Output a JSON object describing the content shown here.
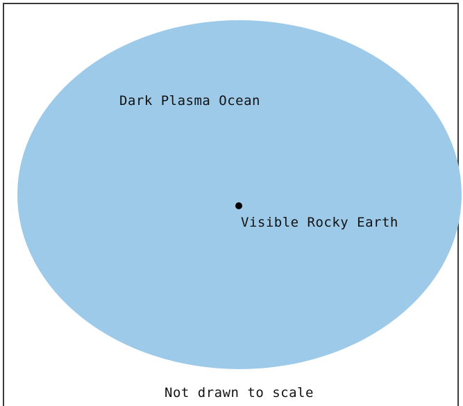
{
  "diagram": {
    "ocean_label": "Dark Plasma Ocean",
    "earth_label": "Visible Rocky Earth",
    "note": "Not drawn to scale"
  },
  "colors": {
    "ocean_fill": "#9ecae9",
    "earth_dot": "#000000",
    "frame": "#3a3a3a"
  }
}
